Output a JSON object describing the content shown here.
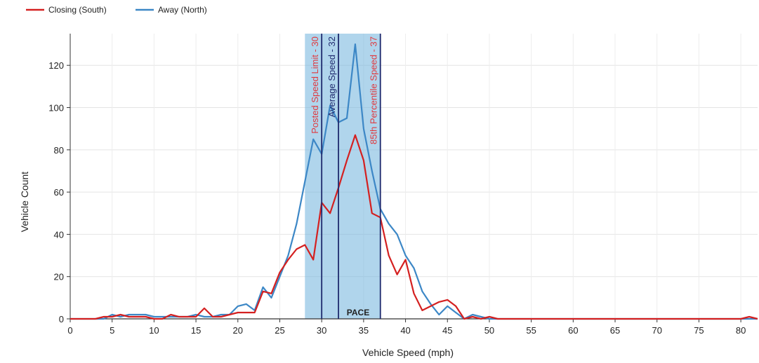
{
  "chart_data": {
    "type": "line",
    "xlabel": "Vehicle Speed (mph)",
    "ylabel": "Vehicle Count",
    "xlim": [
      0,
      82
    ],
    "ylim": [
      0,
      135
    ],
    "xticks": [
      0,
      5,
      10,
      15,
      20,
      25,
      30,
      35,
      40,
      45,
      50,
      55,
      60,
      65,
      70,
      75,
      80
    ],
    "yticks": [
      0,
      20,
      40,
      60,
      80,
      100,
      120
    ],
    "grid": true,
    "legend_position": "top-left",
    "x": [
      0,
      1,
      2,
      3,
      4,
      5,
      6,
      7,
      8,
      9,
      10,
      11,
      12,
      13,
      14,
      15,
      16,
      17,
      18,
      19,
      20,
      21,
      22,
      23,
      24,
      25,
      26,
      27,
      28,
      29,
      30,
      31,
      32,
      33,
      34,
      35,
      36,
      37,
      38,
      39,
      40,
      41,
      42,
      43,
      44,
      45,
      46,
      47,
      48,
      49,
      50,
      51,
      52,
      53,
      54,
      55,
      56,
      57,
      58,
      59,
      60,
      61,
      62,
      63,
      64,
      65,
      66,
      67,
      68,
      69,
      70,
      71,
      72,
      73,
      74,
      75,
      76,
      77,
      78,
      79,
      80,
      81,
      82
    ],
    "series": [
      {
        "name": "Closing (South)",
        "color": "#d42020",
        "values": [
          0,
          0,
          0,
          0,
          1,
          1,
          2,
          1,
          1,
          1,
          0,
          0,
          2,
          1,
          1,
          1,
          5,
          1,
          1,
          2,
          3,
          3,
          3,
          13,
          12,
          22,
          28,
          33,
          35,
          28,
          55,
          50,
          62,
          75,
          87,
          75,
          50,
          48,
          30,
          21,
          28,
          12,
          4,
          6,
          8,
          9,
          6,
          0,
          1,
          0,
          1,
          0,
          0,
          0,
          0,
          0,
          0,
          0,
          0,
          0,
          0,
          0,
          0,
          0,
          0,
          0,
          0,
          0,
          0,
          0,
          0,
          0,
          0,
          0,
          0,
          0,
          0,
          0,
          0,
          0,
          0,
          1,
          0
        ]
      },
      {
        "name": "Away (North)",
        "color": "#3c87c6",
        "values": [
          0,
          0,
          0,
          0,
          0,
          2,
          1,
          2,
          2,
          2,
          1,
          1,
          1,
          1,
          1,
          2,
          1,
          1,
          2,
          2,
          6,
          7,
          4,
          15,
          10,
          20,
          30,
          45,
          65,
          85,
          78,
          101,
          93,
          95,
          130,
          90,
          70,
          52,
          45,
          40,
          30,
          24,
          13,
          7,
          2,
          6,
          3,
          0,
          2,
          1,
          0,
          0,
          0,
          0,
          0,
          0,
          0,
          0,
          0,
          0,
          0,
          0,
          0,
          0,
          0,
          0,
          0,
          0,
          0,
          0,
          0,
          0,
          0,
          0,
          0,
          0,
          0,
          0,
          0,
          0,
          0,
          0,
          0
        ]
      }
    ],
    "band": {
      "from": 28,
      "to": 37,
      "color": "#6fb3dc",
      "label": "PACE"
    },
    "reference_lines": [
      {
        "x": 30,
        "label": "Posted Speed Limit - 30",
        "color": "#e0393e"
      },
      {
        "x": 32,
        "label": "Average Speed - 32",
        "color": "#1f2a6e"
      },
      {
        "x": 37,
        "label": "85th Percentile Speed - 37",
        "color": "#e0393e"
      }
    ],
    "reference_line_color": "#1f2a6e"
  }
}
